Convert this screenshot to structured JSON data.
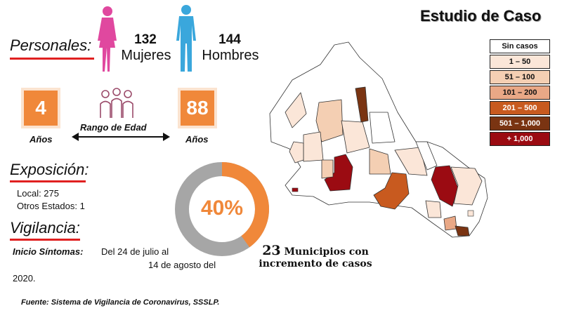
{
  "title": "Estudio de Caso",
  "personales": {
    "heading": "Personales:",
    "women_count": "132",
    "women_label": "Mujeres",
    "men_count": "144",
    "men_label": "Hombres"
  },
  "age": {
    "min": "4",
    "max": "88",
    "min_unit": "Años",
    "max_unit": "Años",
    "range_label": "Rango de Edad"
  },
  "exposicion": {
    "heading": "Exposición:",
    "local": "Local:  275",
    "otros": "Otros Estados: 1"
  },
  "vigilancia": {
    "heading": "Vigilancia:",
    "inicio_label": "Inicio Síntomas:",
    "inicio_line1": "Del 24 de julio al",
    "inicio_line2": "14 de agosto del",
    "inicio_line3": "2020."
  },
  "donut": {
    "percent_label": "40%",
    "percent": 40,
    "fill_color": "#f0883a",
    "track_color": "#a6a6a6"
  },
  "municipios": {
    "count": "23",
    "line1": "Municipios con",
    "line2": "incremento de casos"
  },
  "legend": [
    {
      "label": "Sin casos",
      "color": "#ffffff",
      "text_color": "#111111"
    },
    {
      "label": "1 – 50",
      "color": "#fbe6d8",
      "text_color": "#111111"
    },
    {
      "label": "51 – 100",
      "color": "#f4cfb3",
      "text_color": "#111111"
    },
    {
      "label": "101 – 200",
      "color": "#e9a886",
      "text_color": "#111111"
    },
    {
      "label": "201 – 500",
      "color": "#c85a1f",
      "text_color": "#ffffff"
    },
    {
      "label": "501 – 1,000",
      "color": "#7a3412",
      "text_color": "#ffffff"
    },
    {
      "label": "+ 1,000",
      "color": "#9b0b12",
      "text_color": "#ffffff"
    }
  ],
  "fuente": "Fuente: Sistema de Vigilancia de Coronavirus, SSSLP.",
  "colors": {
    "women": "#e0489f",
    "men": "#3aa7dc",
    "accent": "#f0883a",
    "underline": "#e02020"
  },
  "icons": {
    "women": "woman-figure-icon",
    "men": "man-figure-icon",
    "group": "people-group-icon"
  }
}
